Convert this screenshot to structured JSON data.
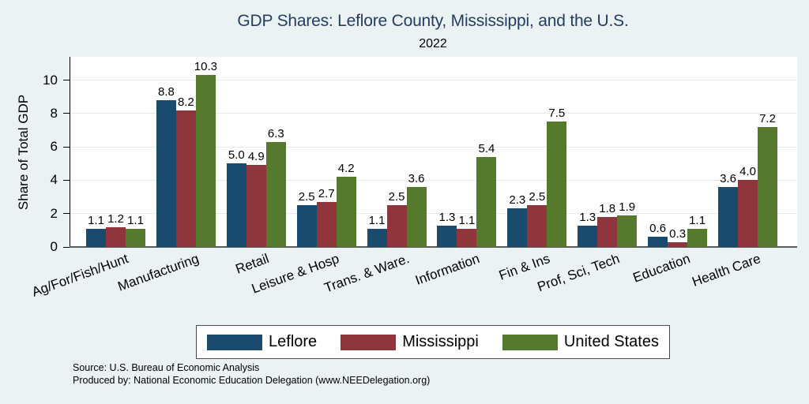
{
  "chart_data": {
    "type": "bar",
    "title": "GDP Shares: Leflore County, Mississippi, and the U.S.",
    "subtitle": "2022",
    "ylabel": "Share of Total GDP",
    "xlabel": "",
    "categories": [
      "Ag/For/Fish/Hunt",
      "Manufacturing",
      "Retail",
      "Leisure & Hosp",
      "Trans. & Ware.",
      "Information",
      "Fin & Ins",
      "Prof, Sci, Tech",
      "Education",
      "Health Care"
    ],
    "series": [
      {
        "name": "Leflore",
        "color": "#1b4a6f",
        "values": [
          1.1,
          8.8,
          5.0,
          2.5,
          1.1,
          1.3,
          2.3,
          1.3,
          0.6,
          3.6
        ],
        "labels": [
          "1.1",
          "8.8",
          "5.0",
          "2.5",
          "1.1",
          "1.3",
          "2.3",
          "1.3",
          "0.6",
          "3.6"
        ]
      },
      {
        "name": "Mississippi",
        "color": "#8f353c",
        "values": [
          1.2,
          8.2,
          4.9,
          2.7,
          2.5,
          1.1,
          2.5,
          1.8,
          0.3,
          4.0
        ],
        "labels": [
          "1.2",
          "8.2",
          "4.9",
          "2.7",
          "2.5",
          "1.1",
          "2.5",
          "1.8",
          "0.3",
          "4.0"
        ]
      },
      {
        "name": "United States",
        "color": "#567a2d",
        "values": [
          1.1,
          10.3,
          6.3,
          4.2,
          3.6,
          5.4,
          7.5,
          1.9,
          1.1,
          7.2
        ],
        "labels": [
          "1.1",
          "10.3",
          "6.3",
          "4.2",
          "3.6",
          "5.4",
          "7.5",
          "1.9",
          "1.1",
          "7.2"
        ]
      }
    ],
    "yticks": [
      0,
      2,
      4,
      6,
      8,
      10
    ],
    "ylim": [
      0,
      11.4
    ],
    "grid": true,
    "legend_position": "bottom"
  },
  "source": {
    "line1": "Source: U.S. Bureau of Economic Analysis",
    "line2": "Produced by: National Economic Education Delegation (www.NEEDelegation.org)"
  },
  "colors": {
    "background": "#eaf2f3",
    "plot_background": "#ffffff",
    "title": "#253c63",
    "gridline": "#e2ebee",
    "axis_line": "#5a5a5a"
  }
}
